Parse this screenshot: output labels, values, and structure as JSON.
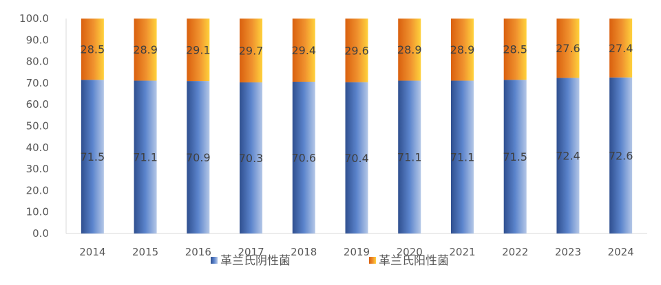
{
  "chart_data": {
    "type": "bar",
    "stacked": true,
    "percent_stacked": true,
    "categories": [
      "2014",
      "2015",
      "2016",
      "2017",
      "2018",
      "2019",
      "2020",
      "2021",
      "2022",
      "2023",
      "2024"
    ],
    "series": [
      {
        "name": "革兰氏阴性菌",
        "values": [
          71.5,
          71.1,
          70.9,
          70.3,
          70.6,
          70.4,
          71.1,
          71.1,
          71.5,
          72.4,
          72.6
        ],
        "color": "#4472C4"
      },
      {
        "name": "革兰氏阳性菌",
        "values": [
          28.5,
          28.9,
          29.1,
          29.7,
          29.4,
          29.6,
          28.9,
          28.9,
          28.5,
          27.6,
          27.4
        ],
        "color": "#ED7D31"
      }
    ],
    "ylim": [
      0,
      100
    ],
    "yticks": [
      "0.0",
      "10.0",
      "20.0",
      "30.0",
      "40.0",
      "50.0",
      "60.0",
      "70.0",
      "80.0",
      "90.0",
      "100.0"
    ],
    "grid": false,
    "legend_position": "bottom-center",
    "data_labels": true
  }
}
